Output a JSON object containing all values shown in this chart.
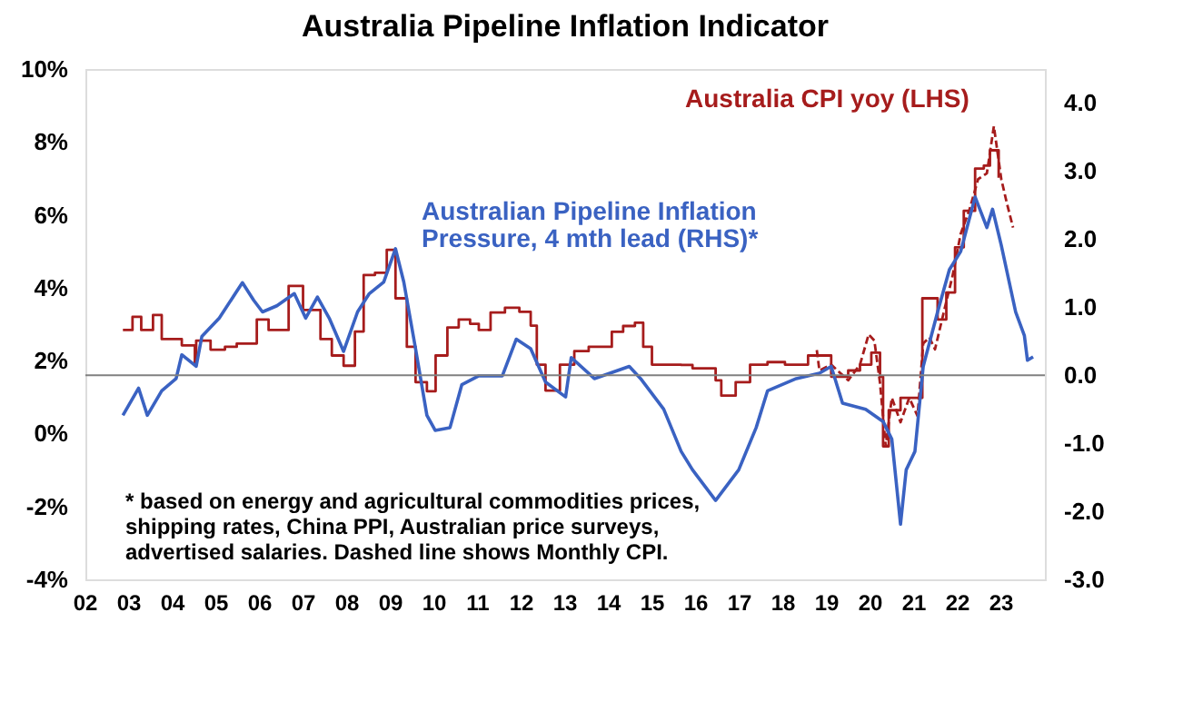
{
  "chart_data": {
    "type": "line",
    "title": "Australia Pipeline Inflation Indicator",
    "xlim": [
      2002,
      2024
    ],
    "xticks": [
      {
        "value": 2002,
        "label": "02"
      },
      {
        "value": 2003,
        "label": "03"
      },
      {
        "value": 2004,
        "label": "04"
      },
      {
        "value": 2005,
        "label": "05"
      },
      {
        "value": 2006,
        "label": "06"
      },
      {
        "value": 2007,
        "label": "07"
      },
      {
        "value": 2008,
        "label": "08"
      },
      {
        "value": 2009,
        "label": "09"
      },
      {
        "value": 2010,
        "label": "10"
      },
      {
        "value": 2011,
        "label": "11"
      },
      {
        "value": 2012,
        "label": "12"
      },
      {
        "value": 2013,
        "label": "13"
      },
      {
        "value": 2014,
        "label": "14"
      },
      {
        "value": 2015,
        "label": "15"
      },
      {
        "value": 2016,
        "label": "16"
      },
      {
        "value": 2017,
        "label": "17"
      },
      {
        "value": 2018,
        "label": "18"
      },
      {
        "value": 2019,
        "label": "19"
      },
      {
        "value": 2020,
        "label": "20"
      },
      {
        "value": 2021,
        "label": "21"
      },
      {
        "value": 2022,
        "label": "22"
      },
      {
        "value": 2023,
        "label": "23"
      }
    ],
    "ylim": [
      -4,
      10
    ],
    "yticks": [
      {
        "value": -4,
        "label": "-4%"
      },
      {
        "value": -2,
        "label": "-2%"
      },
      {
        "value": 0,
        "label": "0%"
      },
      {
        "value": 2,
        "label": "2%"
      },
      {
        "value": 4,
        "label": "4%"
      },
      {
        "value": 6,
        "label": "6%"
      },
      {
        "value": 8,
        "label": "8%"
      },
      {
        "value": 10,
        "label": "10%"
      }
    ],
    "y2lim": [
      -3,
      4.5
    ],
    "y2ticks": [
      {
        "value": -3,
        "label": "-3.0"
      },
      {
        "value": -2,
        "label": "-2.0"
      },
      {
        "value": -1,
        "label": "-1.0"
      },
      {
        "value": 0,
        "label": "0.0"
      },
      {
        "value": 1,
        "label": "1.0"
      },
      {
        "value": 2,
        "label": "2.0"
      },
      {
        "value": 3,
        "label": "3.0"
      },
      {
        "value": 4,
        "label": "4.0"
      }
    ],
    "grid": false,
    "legend": false,
    "ref_lines": [
      {
        "axis": "y2",
        "value": 0,
        "color": "#808080"
      }
    ],
    "series": [
      {
        "name": "Australia CPI yoy (LHS)",
        "type": "step",
        "color": "#a61c1c",
        "line_style": "solid",
        "x": [
          2002.86,
          2003.08,
          2003.28,
          2003.55,
          2003.75,
          2004.21,
          2004.51,
          2004.54,
          2004.87,
          2005.2,
          2005.47,
          2005.93,
          2006.2,
          2006.66,
          2006.99,
          2007.39,
          2007.65,
          2007.92,
          2008.18,
          2008.38,
          2008.64,
          2008.91,
          2009.11,
          2009.37,
          2009.57,
          2009.83,
          2010.03,
          2010.3,
          2010.56,
          2010.82,
          2011.02,
          2011.29,
          2011.62,
          2011.95,
          2012.21,
          2012.35,
          2012.55,
          2012.88,
          2013.21,
          2013.54,
          2014.07,
          2014.33,
          2014.6,
          2014.79,
          2014.99,
          2015.66,
          2015.92,
          2016.45,
          2016.58,
          2016.91,
          2017.24,
          2017.64,
          2018.04,
          2018.57,
          2018.83,
          2019.1,
          2019.49,
          2019.76,
          2020.02,
          2020.22,
          2020.29,
          2020.42,
          2020.69,
          2021.02,
          2021.19,
          2021.35,
          2021.54,
          2021.74,
          2021.94,
          2022.14,
          2022.4,
          2022.6,
          2022.74,
          2022.94
        ],
        "values": [
          2.84,
          3.2,
          2.84,
          3.25,
          2.59,
          2.42,
          1.89,
          2.55,
          2.3,
          2.38,
          2.47,
          3.13,
          2.84,
          4.05,
          3.39,
          2.59,
          2.14,
          1.86,
          2.8,
          4.35,
          4.41,
          5.04,
          3.71,
          2.38,
          1.41,
          1.16,
          2.14,
          2.91,
          3.13,
          3.01,
          2.84,
          3.32,
          3.45,
          3.34,
          2.96,
          1.89,
          1.18,
          1.89,
          2.26,
          2.38,
          2.79,
          2.95,
          3.04,
          2.38,
          1.89,
          1.88,
          1.79,
          1.46,
          1.04,
          1.41,
          1.89,
          1.96,
          1.89,
          2.14,
          2.14,
          1.56,
          1.73,
          1.89,
          2.22,
          1.56,
          -0.35,
          0.64,
          0.98,
          0.98,
          3.71,
          3.71,
          3.13,
          3.87,
          5.11,
          6.11,
          7.27,
          7.35,
          7.77,
          7.02
        ]
      },
      {
        "color": "#a61c1c",
        "line_style": "dashed",
        "x": [
          2018.77,
          2018.83,
          2019.1,
          2019.49,
          2019.76,
          2019.96,
          2020.09,
          2020.22,
          2020.35,
          2020.49,
          2020.69,
          2020.89,
          2021.08,
          2021.21,
          2021.35,
          2021.48,
          2021.68,
          2021.88,
          2022.07,
          2022.27,
          2022.47,
          2022.67,
          2022.83,
          2023.0,
          2023.13,
          2023.27
        ],
        "values": [
          2.29,
          1.73,
          1.89,
          1.46,
          1.89,
          2.72,
          2.55,
          1.38,
          -0.35,
          0.98,
          0.31,
          0.98,
          0.48,
          2.47,
          2.64,
          2.31,
          3.32,
          4.31,
          5.48,
          6.14,
          6.98,
          7.14,
          8.43,
          6.98,
          6.31,
          5.65
        ]
      },
      {
        "name": "Australian Pipeline Inflation\nPressure, 4 mth lead (RHS)*",
        "axis": "y2",
        "color": "#3a62c2",
        "line_style": "solid",
        "x": [
          2002.86,
          2003.22,
          2003.42,
          2003.75,
          2004.08,
          2004.21,
          2004.54,
          2004.67,
          2005.07,
          2005.6,
          2005.86,
          2006.06,
          2006.39,
          2006.79,
          2007.05,
          2007.32,
          2007.59,
          2007.92,
          2008.24,
          2008.51,
          2008.84,
          2009.11,
          2009.3,
          2009.57,
          2009.83,
          2010.02,
          2010.36,
          2010.63,
          2011.02,
          2011.56,
          2011.88,
          2012.21,
          2012.55,
          2013.01,
          2013.14,
          2013.67,
          2014.47,
          2014.73,
          2015.26,
          2015.66,
          2015.92,
          2016.45,
          2016.98,
          2017.38,
          2017.64,
          2018.3,
          2018.83,
          2019.1,
          2019.36,
          2019.89,
          2020.29,
          2020.49,
          2020.69,
          2020.82,
          2021.02,
          2021.21,
          2021.54,
          2021.81,
          2022.07,
          2022.4,
          2022.67,
          2022.8,
          2023.0,
          2023.33,
          2023.53,
          2023.6,
          2023.73
        ],
        "values": [
          -0.59,
          -0.19,
          -0.59,
          -0.23,
          -0.05,
          0.3,
          0.13,
          0.57,
          0.84,
          1.36,
          1.1,
          0.93,
          1.02,
          1.2,
          0.84,
          1.15,
          0.84,
          0.35,
          0.93,
          1.2,
          1.37,
          1.86,
          1.37,
          0.39,
          -0.59,
          -0.81,
          -0.77,
          -0.14,
          -0.01,
          -0.01,
          0.53,
          0.39,
          -0.1,
          -0.32,
          0.26,
          -0.05,
          0.13,
          -0.05,
          -0.5,
          -1.12,
          -1.39,
          -1.84,
          -1.39,
          -0.77,
          -0.23,
          -0.05,
          0.03,
          0.13,
          -0.41,
          -0.5,
          -0.68,
          -0.94,
          -2.19,
          -1.39,
          -1.12,
          0.13,
          0.93,
          1.55,
          1.82,
          2.62,
          2.17,
          2.44,
          1.91,
          0.93,
          0.58,
          0.22,
          0.27
        ]
      }
    ],
    "annotations": [
      "* based on energy and agricultural commodities prices,\nshipping rates, China PPI, Australian price surveys,\nadvertised salaries. Dashed line shows Monthly CPI."
    ]
  }
}
